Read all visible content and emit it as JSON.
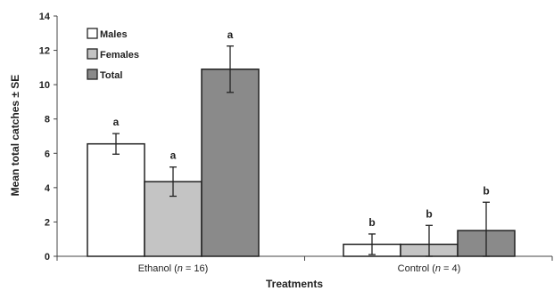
{
  "chart_data": {
    "type": "bar",
    "title": "",
    "xlabel": "Treatments",
    "ylabel": "Mean total catches ± SE",
    "ylim": [
      0,
      14
    ],
    "yticks": [
      0,
      2,
      4,
      6,
      8,
      10,
      12,
      14
    ],
    "categories": [
      {
        "prefix": "Ethanol (",
        "n_symbol": "n",
        "suffix": " = 16)"
      },
      {
        "prefix": "Control (",
        "n_symbol": "n",
        "suffix": " = 4)"
      }
    ],
    "series": [
      {
        "name": "Males",
        "color": "#ffffff",
        "values": [
          6.55,
          0.7
        ],
        "errors": [
          0.6,
          0.6
        ],
        "letters": [
          "a",
          "b"
        ]
      },
      {
        "name": "Females",
        "color": "#c4c4c4",
        "values": [
          4.35,
          0.7
        ],
        "errors": [
          0.85,
          1.1
        ],
        "letters": [
          "a",
          "b"
        ]
      },
      {
        "name": "Total",
        "color": "#8a8a8a",
        "values": [
          10.9,
          1.5
        ],
        "errors": [
          1.35,
          1.65
        ],
        "letters": [
          "a",
          "b"
        ]
      }
    ],
    "legend_position": "top-left",
    "grid": false
  }
}
